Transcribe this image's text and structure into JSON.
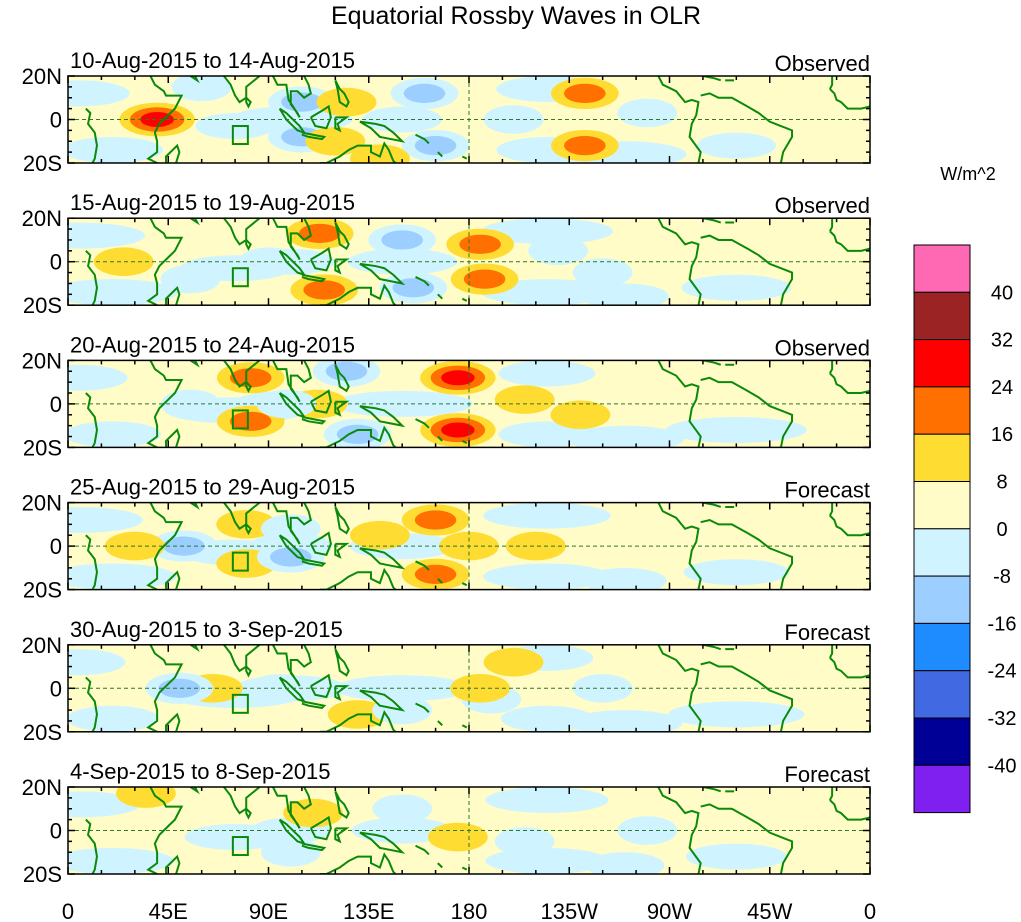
{
  "chart_data": {
    "type": "heatmap",
    "title": "Equatorial Rossby Waves in OLR",
    "unit_label": "W/m^2",
    "x_ticks": [
      {
        "lon": 0,
        "label": "0"
      },
      {
        "lon": 45,
        "label": "45E"
      },
      {
        "lon": 90,
        "label": "90E"
      },
      {
        "lon": 135,
        "label": "135E"
      },
      {
        "lon": 180,
        "label": "180"
      },
      {
        "lon": 225,
        "label": "135W"
      },
      {
        "lon": 270,
        "label": "90W"
      },
      {
        "lon": 315,
        "label": "45W"
      },
      {
        "lon": 360,
        "label": "0"
      }
    ],
    "y_ticks": [
      {
        "lat": 20,
        "label": "20N"
      },
      {
        "lat": 0,
        "label": "0"
      },
      {
        "lat": -20,
        "label": "20S"
      }
    ],
    "lat_range": [
      -20,
      20
    ],
    "lon_range": [
      0,
      360
    ],
    "colorbar": {
      "levels": [
        "40",
        "32",
        "24",
        "16",
        "8",
        "0",
        "-8",
        "-16",
        "-24",
        "-32",
        "-40"
      ],
      "colors": [
        "#ff69b4",
        "#9b2323",
        "#ff0000",
        "#ff7000",
        "#ffdc32",
        "#fffcc8",
        "#d0f4ff",
        "#9ccfff",
        "#1e8cff",
        "#4169e1",
        "#000096",
        "#8020f0"
      ]
    },
    "panels": [
      {
        "date_range": "10-Aug-2015 to 14-Aug-2015",
        "status": "Observed",
        "anomalies": [
          [
            40,
            0,
            20
          ],
          [
            105,
            8,
            -16
          ],
          [
            105,
            -8,
            -16
          ],
          [
            160,
            12,
            -16
          ],
          [
            165,
            -12,
            -16
          ],
          [
            232,
            12,
            16
          ],
          [
            232,
            -12,
            16
          ],
          [
            120,
            -10,
            8
          ],
          [
            140,
            -18,
            8
          ],
          [
            125,
            8,
            8
          ],
          [
            260,
            3,
            -8
          ],
          [
            200,
            0,
            -8
          ],
          [
            60,
            15,
            -8
          ]
        ]
      },
      {
        "date_range": "15-Aug-2015 to 19-Aug-2015",
        "status": "Observed",
        "anomalies": [
          [
            115,
            -13,
            16
          ],
          [
            113,
            13,
            12
          ],
          [
            185,
            8,
            16
          ],
          [
            187,
            -8,
            16
          ],
          [
            150,
            10,
            -16
          ],
          [
            155,
            -12,
            -16
          ],
          [
            55,
            -8,
            -8
          ],
          [
            90,
            0,
            -8
          ],
          [
            240,
            -5,
            -8
          ],
          [
            220,
            5,
            -8
          ],
          [
            25,
            0,
            8
          ]
        ]
      },
      {
        "date_range": "20-Aug-2015 to 24-Aug-2015",
        "status": "Observed",
        "anomalies": [
          [
            82,
            12,
            16
          ],
          [
            82,
            -8,
            16
          ],
          [
            175,
            12,
            24
          ],
          [
            175,
            -12,
            24
          ],
          [
            125,
            15,
            -16
          ],
          [
            130,
            -14,
            -16
          ],
          [
            112,
            0,
            8
          ],
          [
            230,
            -5,
            8
          ],
          [
            98,
            0,
            -8
          ],
          [
            205,
            2,
            8
          ],
          [
            55,
            0,
            -8
          ]
        ]
      },
      {
        "date_range": "25-Aug-2015 to 29-Aug-2015",
        "status": "Forecast",
        "anomalies": [
          [
            52,
            0,
            -16
          ],
          [
            80,
            10,
            8
          ],
          [
            80,
            -8,
            8
          ],
          [
            165,
            12,
            16
          ],
          [
            165,
            -13,
            16
          ],
          [
            100,
            -5,
            -16
          ],
          [
            100,
            8,
            -8
          ],
          [
            140,
            5,
            8
          ],
          [
            180,
            0,
            8
          ],
          [
            210,
            0,
            8
          ],
          [
            30,
            0,
            8
          ]
        ]
      },
      {
        "date_range": "30-Aug-2015 to 3-Sep-2015",
        "status": "Forecast",
        "anomalies": [
          [
            200,
            12,
            8
          ],
          [
            130,
            -12,
            8
          ],
          [
            65,
            0,
            8
          ],
          [
            150,
            -10,
            -8
          ],
          [
            95,
            0,
            -8
          ],
          [
            190,
            -5,
            -8
          ],
          [
            240,
            0,
            -8
          ],
          [
            185,
            0,
            8
          ],
          [
            50,
            0,
            -16
          ]
        ]
      },
      {
        "date_range": "4-Sep-2015 to 8-Sep-2015",
        "status": "Forecast",
        "anomalies": [
          [
            175,
            -3,
            8
          ],
          [
            150,
            10,
            -8
          ],
          [
            100,
            -10,
            -8
          ],
          [
            205,
            -5,
            -8
          ],
          [
            110,
            8,
            8
          ],
          [
            35,
            17,
            8
          ],
          [
            260,
            0,
            -8
          ]
        ]
      }
    ]
  }
}
